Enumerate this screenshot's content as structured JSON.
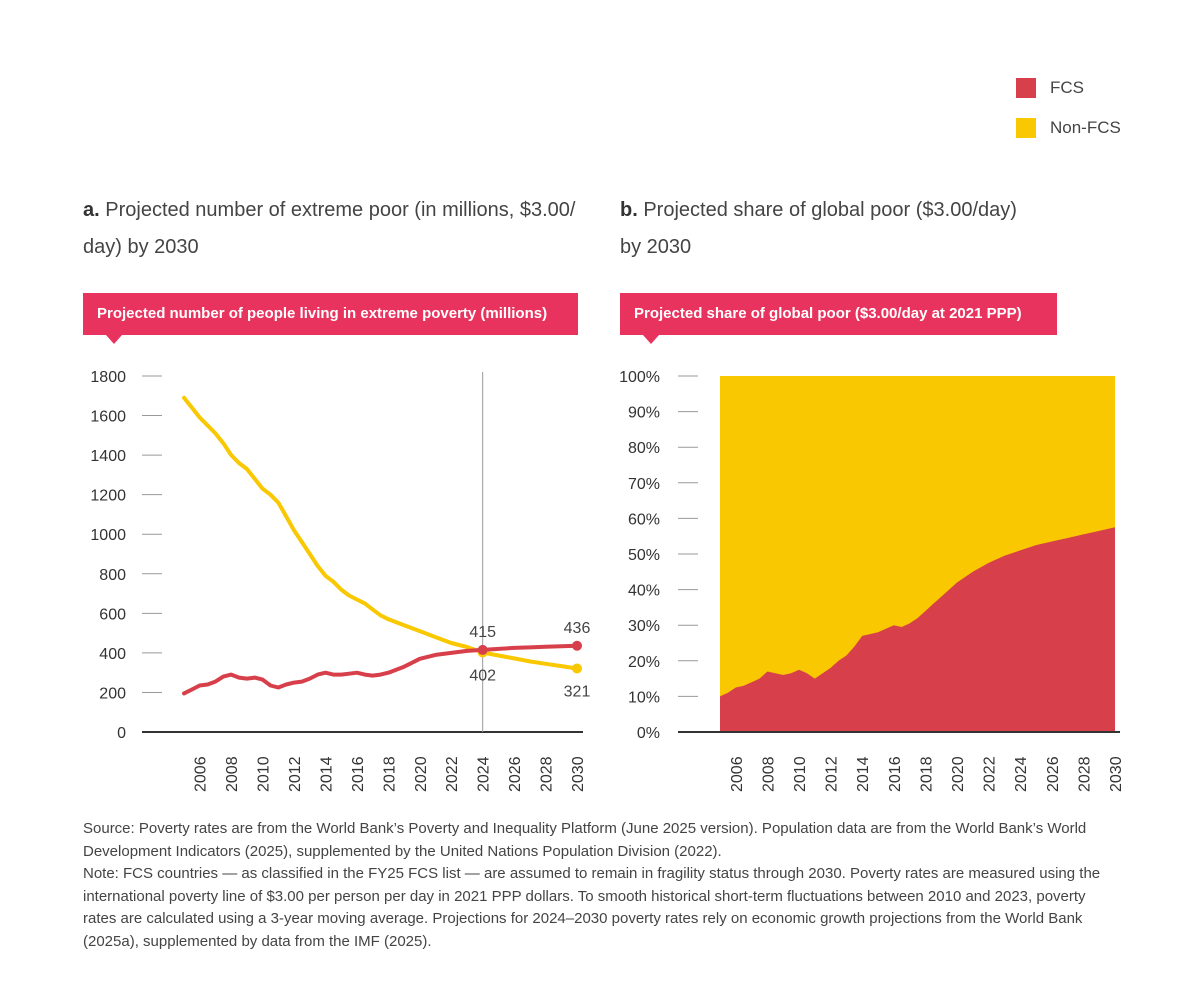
{
  "legend": [
    {
      "label": "FCS",
      "color": "#d7404a"
    },
    {
      "label": "Non-FCS",
      "color": "#f9c800"
    }
  ],
  "panels": {
    "a": {
      "letter": "a.",
      "title_line1": "Projected number of extreme poor (in millions, $3.00/",
      "title_line2": "day) by 2030",
      "badge": "Projected number of people living in extreme poverty (millions)"
    },
    "b": {
      "letter": "b.",
      "title_line1": "Projected share of global poor ($3.00/day)",
      "title_line2": "by 2030",
      "badge": "Projected share of global poor ($3.00/day at 2021 PPP)"
    }
  },
  "colors": {
    "badge": "#e8335f",
    "fcs": "#d7404a",
    "nonfcs": "#f9c800",
    "axis": "#333333",
    "grid": "#999999"
  },
  "chart_data": [
    {
      "type": "line",
      "title": "Projected number of people living in extreme poverty (millions)",
      "xlabel": "",
      "ylabel": "",
      "ylim": [
        0,
        1800
      ],
      "yticks": [
        0,
        200,
        400,
        600,
        800,
        1000,
        1200,
        1400,
        1600,
        1800
      ],
      "xticks": [
        2006,
        2008,
        2010,
        2012,
        2014,
        2016,
        2018,
        2020,
        2022,
        2024,
        2026,
        2028,
        2030
      ],
      "xlim": [
        2005,
        2030
      ],
      "reference_line": 2024,
      "series": [
        {
          "name": "Non-FCS",
          "color": "#f9c800",
          "x": [
            2005,
            2005.5,
            2006,
            2006.5,
            2007,
            2007.5,
            2008,
            2008.5,
            2009,
            2009.5,
            2010,
            2010.5,
            2011,
            2011.5,
            2012,
            2012.5,
            2013,
            2013.5,
            2014,
            2014.5,
            2015,
            2015.5,
            2016,
            2016.5,
            2017,
            2017.5,
            2018,
            2019,
            2020,
            2021,
            2022,
            2023,
            2024,
            2025,
            2026,
            2027,
            2028,
            2029,
            2030
          ],
          "values": [
            1690,
            1640,
            1590,
            1550,
            1510,
            1460,
            1400,
            1360,
            1330,
            1280,
            1230,
            1200,
            1160,
            1090,
            1020,
            960,
            900,
            840,
            790,
            760,
            720,
            690,
            670,
            650,
            620,
            590,
            570,
            540,
            510,
            480,
            450,
            430,
            402,
            387,
            372,
            357,
            345,
            333,
            321
          ]
        },
        {
          "name": "FCS",
          "color": "#d7404a",
          "x": [
            2005,
            2005.5,
            2006,
            2006.5,
            2007,
            2007.5,
            2008,
            2008.5,
            2009,
            2009.5,
            2010,
            2010.5,
            2011,
            2011.5,
            2012,
            2012.5,
            2013,
            2013.5,
            2014,
            2014.5,
            2015,
            2015.5,
            2016,
            2016.5,
            2017,
            2017.5,
            2018,
            2018.5,
            2019,
            2019.5,
            2020,
            2021,
            2022,
            2023,
            2024,
            2025,
            2026,
            2027,
            2028,
            2029,
            2030
          ],
          "values": [
            195,
            215,
            235,
            240,
            255,
            280,
            290,
            275,
            270,
            275,
            265,
            235,
            225,
            240,
            250,
            255,
            270,
            290,
            300,
            290,
            290,
            295,
            300,
            290,
            285,
            290,
            300,
            315,
            330,
            350,
            370,
            390,
            400,
            410,
            415,
            420,
            425,
            428,
            431,
            434,
            436
          ]
        }
      ],
      "annotations": [
        {
          "label": "415",
          "x": 2024,
          "value": 415,
          "position": "above"
        },
        {
          "label": "402",
          "x": 2024,
          "value": 402,
          "position": "below"
        },
        {
          "label": "436",
          "x": 2030,
          "value": 436,
          "position": "above"
        },
        {
          "label": "321",
          "x": 2030,
          "value": 321,
          "position": "below"
        }
      ]
    },
    {
      "type": "area",
      "title": "Projected share of global poor ($3.00/day at 2021 PPP)",
      "xlabel": "",
      "ylabel": "",
      "ylim": [
        0,
        100
      ],
      "yticks": [
        "0%",
        "10%",
        "20%",
        "30%",
        "40%",
        "50%",
        "60%",
        "70%",
        "80%",
        "90%",
        "100%"
      ],
      "xticks": [
        2006,
        2008,
        2010,
        2012,
        2014,
        2016,
        2018,
        2020,
        2022,
        2024,
        2026,
        2028,
        2030
      ],
      "xlim": [
        2005,
        2030
      ],
      "series": [
        {
          "name": "FCS",
          "color": "#d7404a",
          "x": [
            2005,
            2005.5,
            2006,
            2006.5,
            2007,
            2007.5,
            2008,
            2008.5,
            2009,
            2009.5,
            2010,
            2010.5,
            2011,
            2011.5,
            2012,
            2012.5,
            2013,
            2013.5,
            2014,
            2014.5,
            2015,
            2015.5,
            2016,
            2016.5,
            2017,
            2017.5,
            2018,
            2018.5,
            2019,
            2019.5,
            2020,
            2021,
            2022,
            2023,
            2024,
            2025,
            2026,
            2027,
            2028,
            2029,
            2030
          ],
          "values": [
            10,
            11,
            12.5,
            13,
            14,
            15,
            17,
            16.5,
            16,
            16.5,
            17.5,
            16.5,
            15,
            16.5,
            18,
            20,
            21.5,
            24,
            27,
            27.5,
            28,
            29,
            30,
            29.5,
            30.5,
            32,
            34,
            36,
            38,
            40,
            42,
            45,
            47.5,
            49.5,
            51,
            52.5,
            53.5,
            54.5,
            55.5,
            56.5,
            57.5
          ]
        },
        {
          "name": "Non-FCS",
          "color": "#f9c800",
          "values_note": "remainder to 100%"
        }
      ]
    }
  ],
  "footnote": {
    "source": "Source: Poverty rates are from the World Bank’s Poverty and Inequality Platform (June 2025 version). Population data are from the World Bank’s World Development Indicators (2025), supplemented by the United Nations Population Division (2022).",
    "note": "Note: FCS countries — as classified in the FY25 FCS list — are assumed to remain in fragility status through 2030. Poverty rates are measured using the international poverty line of $3.00 per person per day in 2021 PPP dollars. To smooth historical short-term fluctuations between 2010 and 2023, poverty rates are calculated using a 3-year moving average. Projections for 2024–2030 poverty rates rely on economic growth projections from the World Bank (2025a), supplemented by data from the IMF (2025)."
  }
}
